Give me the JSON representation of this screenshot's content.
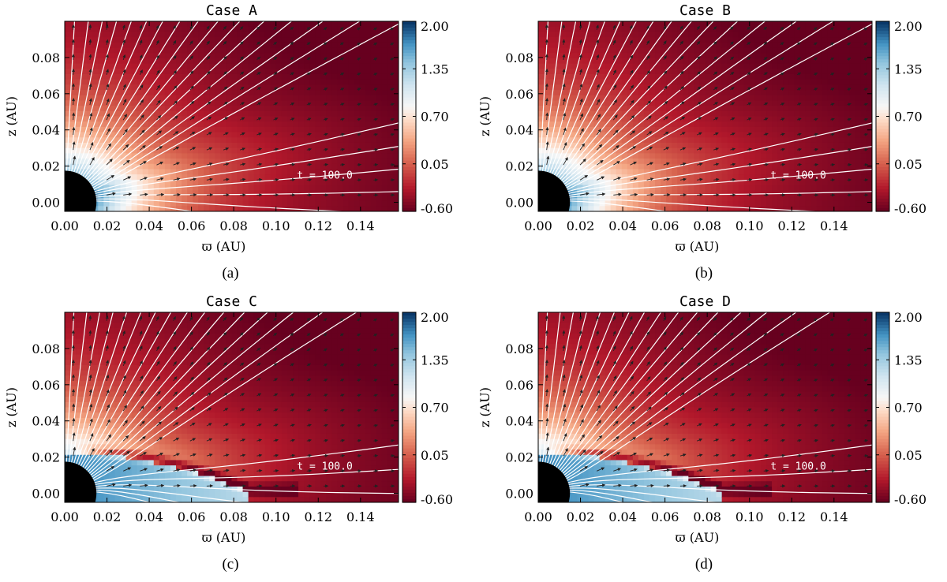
{
  "chart_data": [
    {
      "type": "heatmap",
      "title": "Case A",
      "xlabel": "ϖ (AU)",
      "ylabel": "z (AU)",
      "xlim": [
        0.0,
        0.158
      ],
      "ylim": [
        -0.005,
        0.1
      ],
      "xticks": [
        "0.00",
        "0.02",
        "0.04",
        "0.06",
        "0.08",
        "0.10",
        "0.12",
        "0.14"
      ],
      "xtick_values": [
        0.0,
        0.02,
        0.04,
        0.06,
        0.08,
        0.1,
        0.12,
        0.14
      ],
      "yticks": [
        "0.00",
        "0.02",
        "0.04",
        "0.06",
        "0.08"
      ],
      "ytick_values": [
        0.0,
        0.02,
        0.04,
        0.06,
        0.08
      ],
      "colorbar_ticks": [
        "2.00",
        "1.35",
        "0.70",
        "0.05",
        "-0.60"
      ],
      "colorbar_values": [
        2.0,
        1.35,
        0.7,
        0.05,
        -0.6
      ],
      "colorbar_range": [
        -0.6,
        2.0
      ],
      "annotation": "t = 100.0",
      "caption": "(a)",
      "disk": {
        "present": false,
        "extent": 0.0
      },
      "star_radius": 0.015
    },
    {
      "type": "heatmap",
      "title": "Case B",
      "xlabel": "ϖ (AU)",
      "ylabel": "z (AU)",
      "xlim": [
        0.0,
        0.158
      ],
      "ylim": [
        -0.005,
        0.1
      ],
      "xticks": [
        "0.00",
        "0.02",
        "0.04",
        "0.06",
        "0.08",
        "0.10",
        "0.12",
        "0.14"
      ],
      "xtick_values": [
        0.0,
        0.02,
        0.04,
        0.06,
        0.08,
        0.1,
        0.12,
        0.14
      ],
      "yticks": [
        "0.00",
        "0.02",
        "0.04",
        "0.06",
        "0.08"
      ],
      "ytick_values": [
        0.0,
        0.02,
        0.04,
        0.06,
        0.08
      ],
      "colorbar_ticks": [
        "2.00",
        "1.35",
        "0.70",
        "0.05",
        "-0.60"
      ],
      "colorbar_values": [
        2.0,
        1.35,
        0.7,
        0.05,
        -0.6
      ],
      "colorbar_range": [
        -0.6,
        2.0
      ],
      "annotation": "t = 100.0",
      "caption": "(b)",
      "disk": {
        "present": false,
        "extent": 0.0
      },
      "star_radius": 0.015
    },
    {
      "type": "heatmap",
      "title": "Case C",
      "xlabel": "ϖ (AU)",
      "ylabel": "z (AU)",
      "xlim": [
        0.0,
        0.158
      ],
      "ylim": [
        -0.005,
        0.1
      ],
      "xticks": [
        "0.00",
        "0.02",
        "0.04",
        "0.06",
        "0.08",
        "0.10",
        "0.12",
        "0.14"
      ],
      "xtick_values": [
        0.0,
        0.02,
        0.04,
        0.06,
        0.08,
        0.1,
        0.12,
        0.14
      ],
      "yticks": [
        "0.00",
        "0.02",
        "0.04",
        "0.06",
        "0.08"
      ],
      "ytick_values": [
        0.0,
        0.02,
        0.04,
        0.06,
        0.08
      ],
      "colorbar_ticks": [
        "2.00",
        "1.35",
        "0.70",
        "0.05",
        "-0.60"
      ],
      "colorbar_values": [
        2.0,
        1.35,
        0.7,
        0.05,
        -0.6
      ],
      "colorbar_range": [
        -0.6,
        2.0
      ],
      "annotation": "t = 100.0",
      "caption": "(c)",
      "disk": {
        "present": true,
        "extent": 0.088
      },
      "star_radius": 0.015
    },
    {
      "type": "heatmap",
      "title": "Case D",
      "xlabel": "ϖ (AU)",
      "ylabel": "z (AU)",
      "xlim": [
        0.0,
        0.158
      ],
      "ylim": [
        -0.005,
        0.1
      ],
      "xticks": [
        "0.00",
        "0.02",
        "0.04",
        "0.06",
        "0.08",
        "0.10",
        "0.12",
        "0.14"
      ],
      "xtick_values": [
        0.0,
        0.02,
        0.04,
        0.06,
        0.08,
        0.1,
        0.12,
        0.14
      ],
      "yticks": [
        "0.00",
        "0.02",
        "0.04",
        "0.06",
        "0.08"
      ],
      "ytick_values": [
        0.0,
        0.02,
        0.04,
        0.06,
        0.08
      ],
      "colorbar_ticks": [
        "2.00",
        "1.35",
        "0.70",
        "0.05",
        "-0.60"
      ],
      "colorbar_values": [
        2.0,
        1.35,
        0.7,
        0.05,
        -0.6
      ],
      "colorbar_range": [
        -0.6,
        2.0
      ],
      "annotation": "t = 100.0",
      "caption": "(d)",
      "disk": {
        "present": true,
        "extent": 0.088
      },
      "star_radius": 0.015
    }
  ]
}
